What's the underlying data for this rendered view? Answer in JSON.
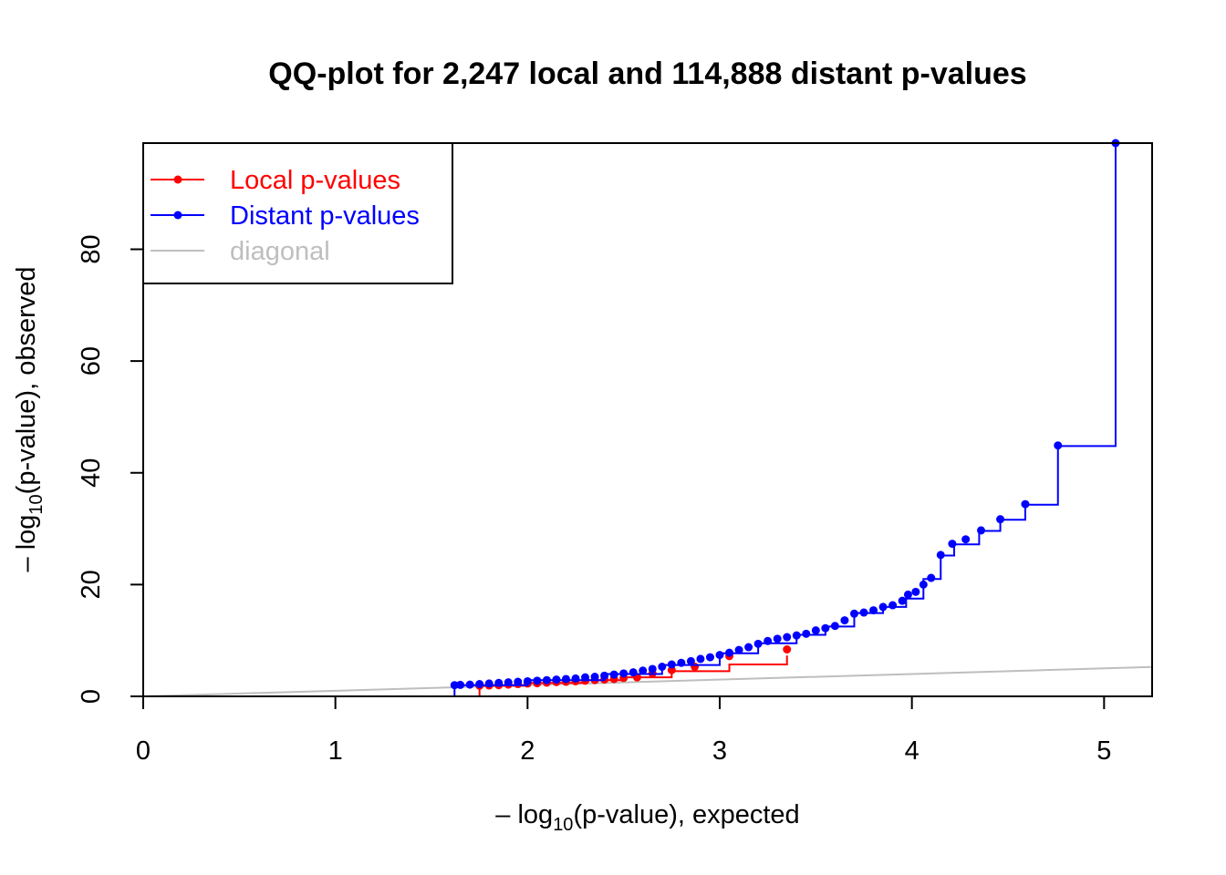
{
  "chart_data": {
    "type": "scatter",
    "title": "QQ-plot for 2,247 local and 114,888 distant p-values",
    "xlabel": {
      "prefix": "– log",
      "sub": "10",
      "suffix": "(p-value), expected"
    },
    "ylabel": {
      "prefix": "– log",
      "sub": "10",
      "suffix": "(p-value), observed"
    },
    "xlim": [
      0,
      5.25
    ],
    "ylim": [
      0,
      99
    ],
    "xticks": [
      "0",
      "1",
      "2",
      "3",
      "4",
      "5"
    ],
    "yticks": [
      "0",
      "20",
      "40",
      "60",
      "80"
    ],
    "legend_position": "top-left",
    "legend": [
      {
        "label": "Local p-values",
        "color": "#FF0000",
        "style": "line-point"
      },
      {
        "label": "Distant p-values",
        "color": "#0000FF",
        "style": "line-point"
      },
      {
        "label": "diagonal",
        "color": "#BEBEBE",
        "style": "line"
      }
    ],
    "diagonal": {
      "x": [
        0,
        5.25
      ],
      "y": [
        0,
        5.25
      ],
      "color": "#BEBEBE"
    },
    "series": [
      {
        "name": "Local p-values",
        "color": "#FF0000",
        "line_x": [
          0,
          1.75,
          2.0,
          2.3,
          2.5,
          2.75,
          3.05,
          3.35
        ],
        "line_y": [
          0,
          1.9,
          2.4,
          2.9,
          3.4,
          4.5,
          5.7,
          7.3
        ],
        "points": [
          [
            1.75,
            1.9
          ],
          [
            1.8,
            1.95
          ],
          [
            1.85,
            2.0
          ],
          [
            1.9,
            2.1
          ],
          [
            1.95,
            2.2
          ],
          [
            2.0,
            2.3
          ],
          [
            2.05,
            2.35
          ],
          [
            2.1,
            2.45
          ],
          [
            2.15,
            2.55
          ],
          [
            2.2,
            2.6
          ],
          [
            2.25,
            2.7
          ],
          [
            2.3,
            2.8
          ],
          [
            2.35,
            2.9
          ],
          [
            2.4,
            3.0
          ],
          [
            2.45,
            3.1
          ],
          [
            2.5,
            3.3
          ],
          [
            2.57,
            3.4
          ],
          [
            2.65,
            4.1
          ],
          [
            2.75,
            4.7
          ],
          [
            2.87,
            5.3
          ],
          [
            3.05,
            7.2
          ],
          [
            3.35,
            8.4
          ]
        ]
      },
      {
        "name": "Distant p-values",
        "color": "#0000FF",
        "line_x": [
          0,
          1.62,
          2.0,
          2.4,
          2.7,
          3.0,
          3.2,
          3.4,
          3.55,
          3.7,
          3.85,
          3.97,
          4.06,
          4.15,
          4.22,
          4.35,
          4.46,
          4.59,
          4.76,
          5.06,
          5.06
        ],
        "line_y": [
          0,
          2.0,
          2.9,
          4.0,
          5.6,
          7.7,
          9.5,
          11.0,
          12.5,
          14.9,
          16.0,
          17.5,
          21.0,
          25.2,
          27.2,
          29.6,
          31.6,
          34.3,
          44.8,
          44.8,
          99
        ],
        "points": [
          [
            1.62,
            2.0
          ],
          [
            1.65,
            2.05
          ],
          [
            1.7,
            2.1
          ],
          [
            1.75,
            2.2
          ],
          [
            1.8,
            2.3
          ],
          [
            1.85,
            2.4
          ],
          [
            1.9,
            2.5
          ],
          [
            1.95,
            2.6
          ],
          [
            2.0,
            2.7
          ],
          [
            2.05,
            2.8
          ],
          [
            2.1,
            2.9
          ],
          [
            2.15,
            3.0
          ],
          [
            2.2,
            3.1
          ],
          [
            2.25,
            3.2
          ],
          [
            2.3,
            3.4
          ],
          [
            2.35,
            3.5
          ],
          [
            2.4,
            3.7
          ],
          [
            2.45,
            3.9
          ],
          [
            2.5,
            4.1
          ],
          [
            2.55,
            4.3
          ],
          [
            2.6,
            4.6
          ],
          [
            2.65,
            4.9
          ],
          [
            2.7,
            5.3
          ],
          [
            2.75,
            5.7
          ],
          [
            2.8,
            6.0
          ],
          [
            2.85,
            6.3
          ],
          [
            2.9,
            6.7
          ],
          [
            2.95,
            7.0
          ],
          [
            3.0,
            7.4
          ],
          [
            3.05,
            7.8
          ],
          [
            3.1,
            8.3
          ],
          [
            3.15,
            8.8
          ],
          [
            3.2,
            9.4
          ],
          [
            3.25,
            9.9
          ],
          [
            3.3,
            10.3
          ],
          [
            3.35,
            10.6
          ],
          [
            3.4,
            10.9
          ],
          [
            3.45,
            11.2
          ],
          [
            3.5,
            11.8
          ],
          [
            3.55,
            12.2
          ],
          [
            3.6,
            12.6
          ],
          [
            3.65,
            13.6
          ],
          [
            3.7,
            14.8
          ],
          [
            3.75,
            15.0
          ],
          [
            3.8,
            15.4
          ],
          [
            3.85,
            16.0
          ],
          [
            3.9,
            16.3
          ],
          [
            3.95,
            17.1
          ],
          [
            3.98,
            18.2
          ],
          [
            4.02,
            18.7
          ],
          [
            4.06,
            20.0
          ],
          [
            4.1,
            21.2
          ],
          [
            4.15,
            25.3
          ],
          [
            4.21,
            27.3
          ],
          [
            4.28,
            28.1
          ],
          [
            4.36,
            29.7
          ],
          [
            4.46,
            31.7
          ],
          [
            4.59,
            34.4
          ],
          [
            4.76,
            44.9
          ],
          [
            5.06,
            99
          ]
        ]
      }
    ]
  }
}
